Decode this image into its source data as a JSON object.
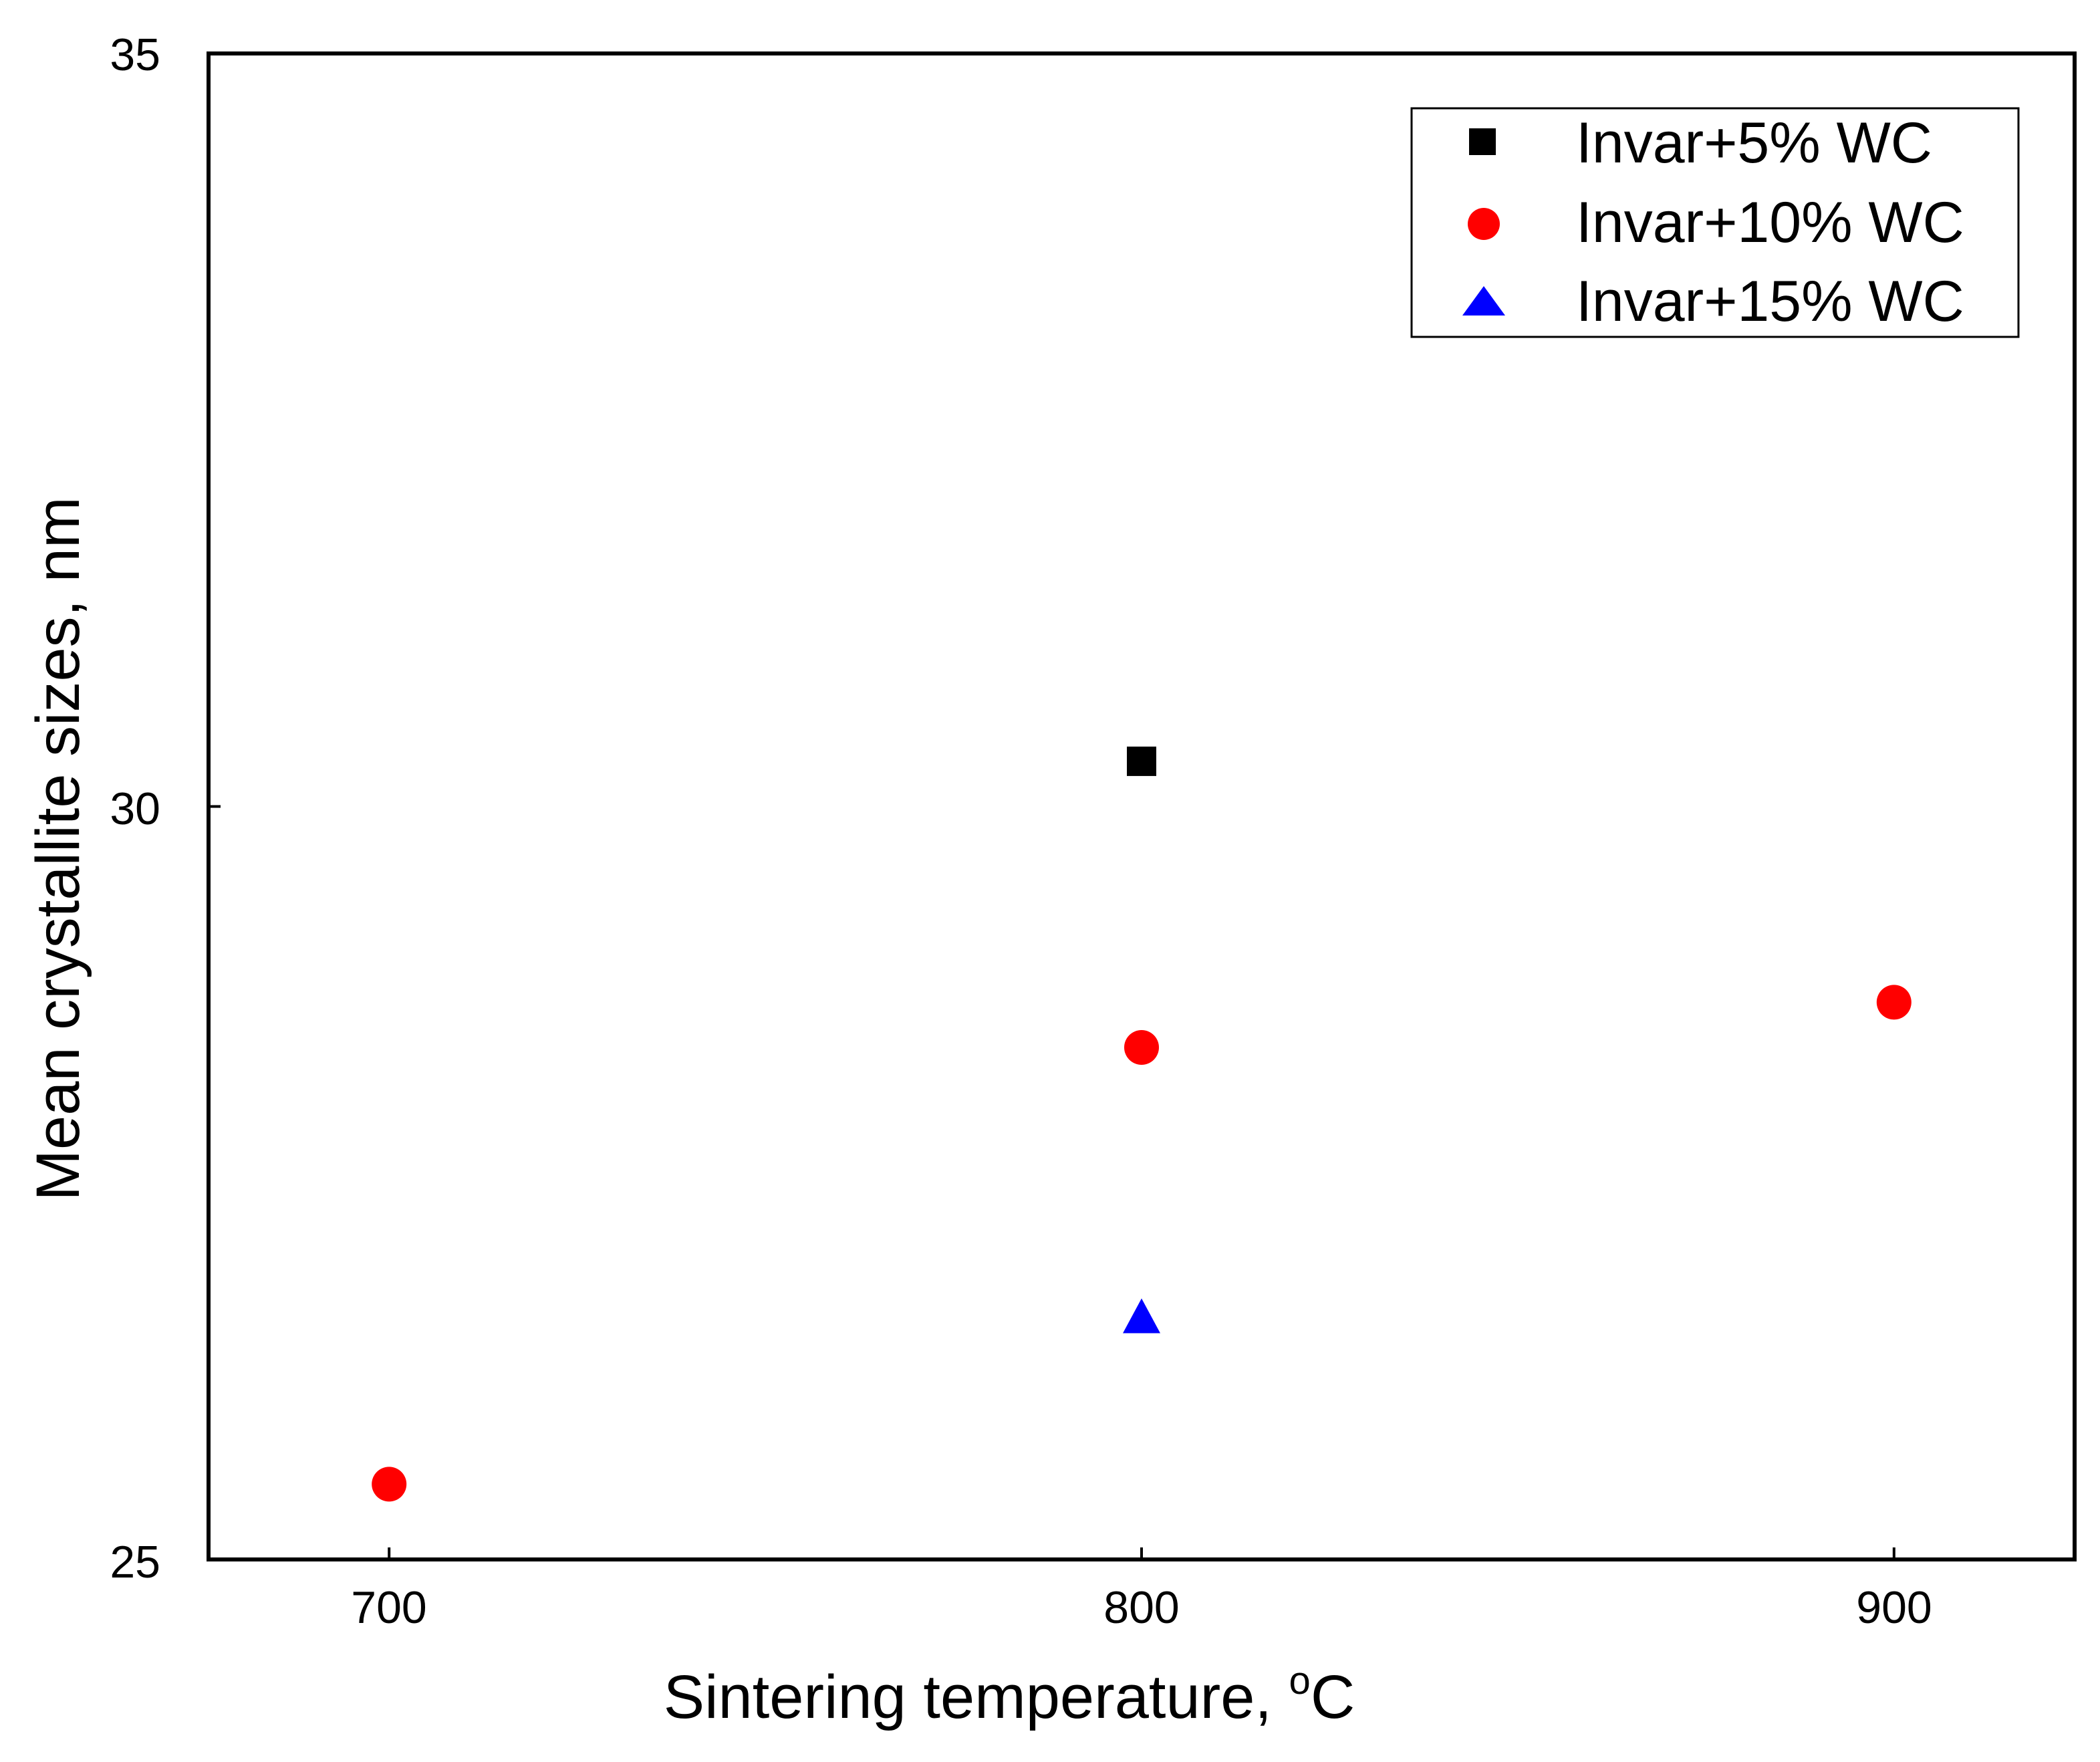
{
  "chart_data": {
    "type": "scatter",
    "title": "",
    "xlabel": "Sintering temperature, ",
    "xlabel_unit_sup": "o",
    "xlabel_unit": "C",
    "ylabel": "Mean crystallite sizes, nm",
    "xlim": [
      676,
      924
    ],
    "ylim": [
      25,
      35
    ],
    "xticks": [
      700,
      800,
      900
    ],
    "yticks": [
      25,
      30,
      35
    ],
    "grid": false,
    "legend_position": "top-right",
    "series": [
      {
        "name": "Invar+5% WC",
        "marker": "square",
        "color": "#000000",
        "points": [
          {
            "x": 800,
            "y": 30.3
          }
        ]
      },
      {
        "name": "Invar+10% WC",
        "marker": "circle",
        "color": "#ff0000",
        "points": [
          {
            "x": 700,
            "y": 25.5
          },
          {
            "x": 800,
            "y": 28.4
          },
          {
            "x": 900,
            "y": 28.7
          }
        ]
      },
      {
        "name": "Invar+15% WC",
        "marker": "triangle",
        "color": "#0000ff",
        "points": [
          {
            "x": 800,
            "y": 26.6
          }
        ]
      }
    ]
  }
}
